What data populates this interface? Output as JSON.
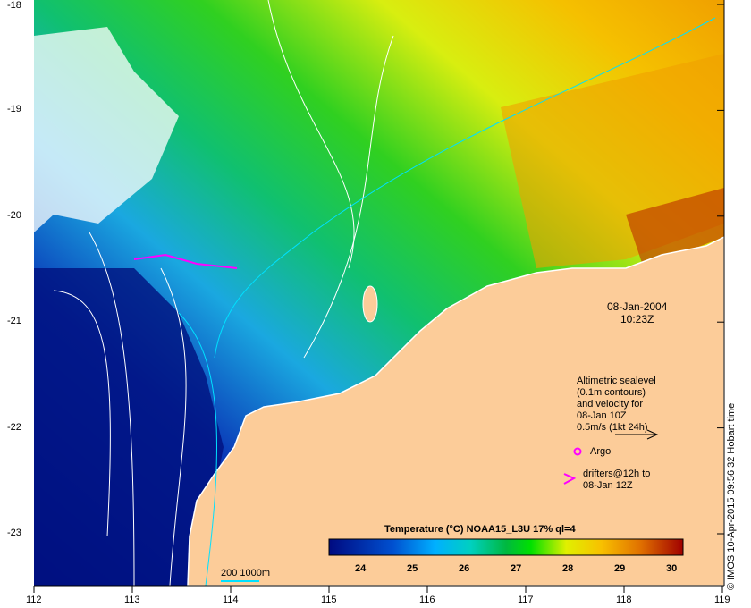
{
  "map": {
    "x_ticks": [
      "112",
      "113",
      "114",
      "115",
      "116",
      "117",
      "118",
      "119"
    ],
    "y_ticks": [
      "-18",
      "-19",
      "-20",
      "-21",
      "-22",
      "-23"
    ],
    "date": "08-Jan-2004",
    "time": "10:23Z",
    "altimetry_note": [
      "Altimetric sealevel",
      "(0.1m contours)",
      "and velocity for",
      "08-Jan 10Z",
      "0.5m/s (1kt 24h)"
    ],
    "argo_label": "Argo",
    "drifters_label": [
      "drifters@12h to",
      "08-Jan 12Z"
    ],
    "scale_label": "200  1000m",
    "credit": "© IMOS 10-Apr-2015 09:56:32 Hobart time",
    "colors": {
      "land": "#fccc99",
      "argo": "#ff00ff",
      "contour": "#ffffff",
      "isobath": "#00e0ff"
    }
  },
  "colorbar": {
    "title": "Temperature (°C) NOAA15_L3U 17% ql=4",
    "ticks": [
      "24",
      "25",
      "26",
      "27",
      "28",
      "29",
      "30"
    ]
  }
}
